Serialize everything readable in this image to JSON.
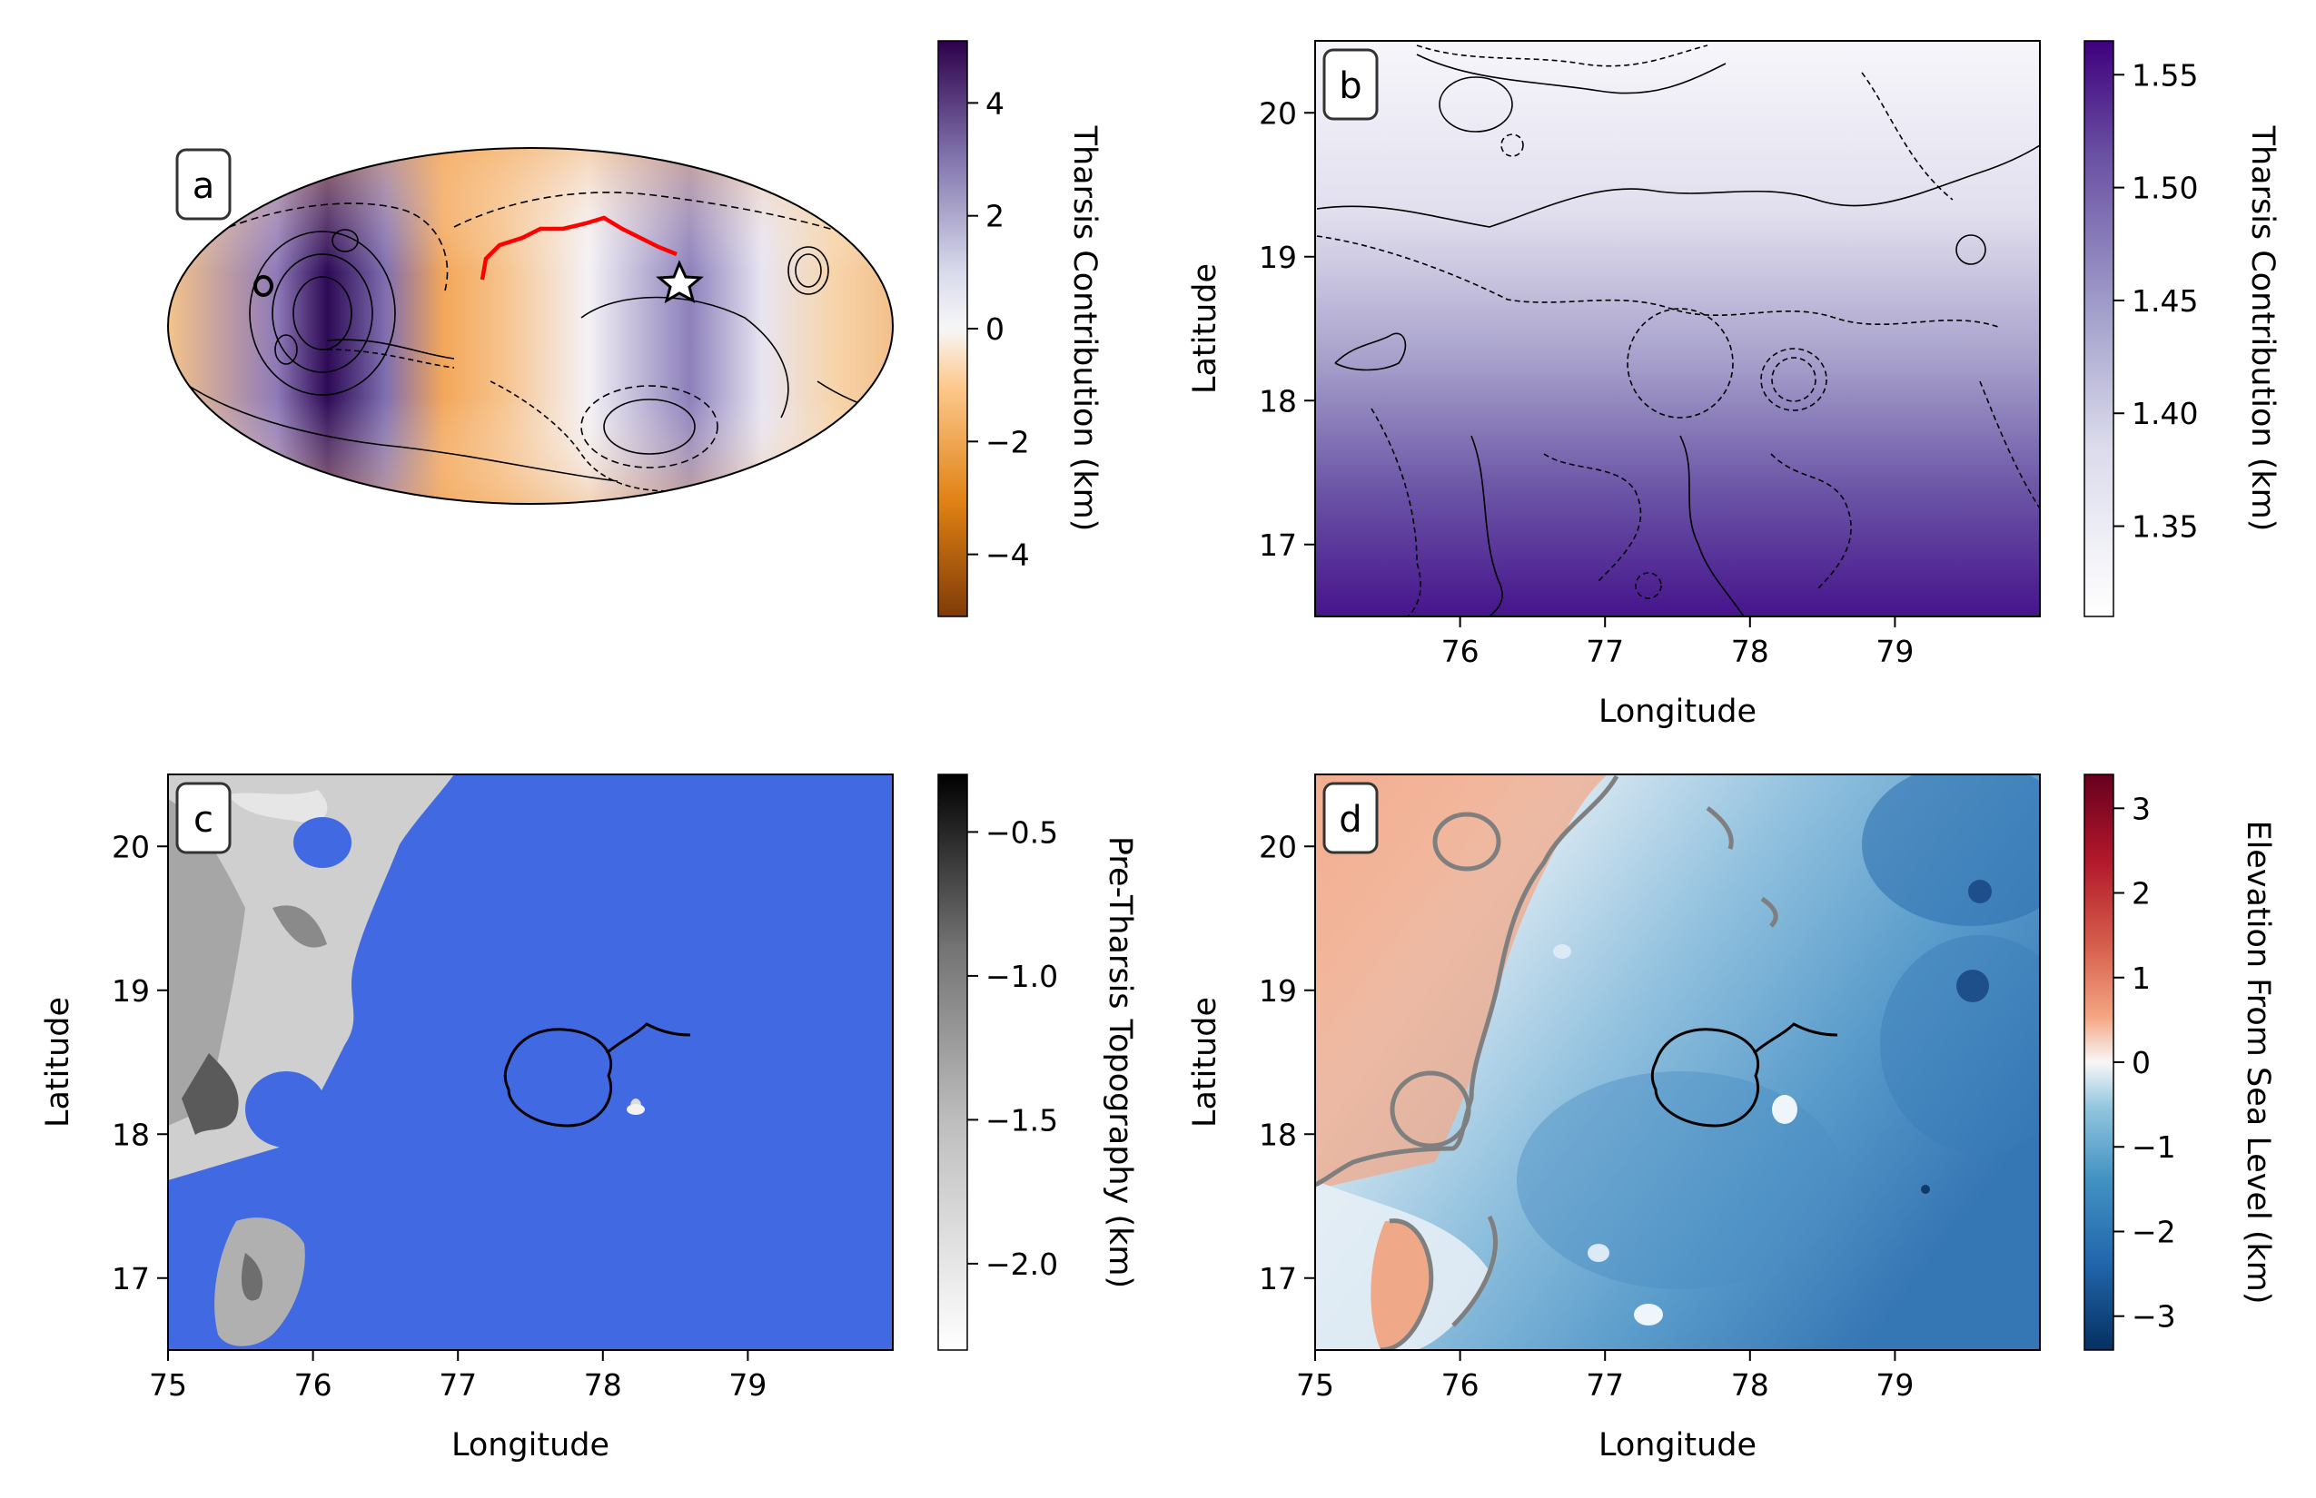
{
  "chart_data": [
    {
      "panel": "a",
      "type": "heatmap",
      "projection": "mollweide",
      "title": "",
      "colorbar": {
        "label": "Tharsis Contribution (km)",
        "ticks": [
          4,
          2,
          0,
          -2,
          -4
        ],
        "tick_labels": [
          "4",
          "2",
          "0",
          "−2",
          "−4"
        ],
        "range": [
          -5.1,
          5.1
        ],
        "colormap": "PuOr",
        "colors": [
          "#7f3b08",
          "#e08214",
          "#fee0b6",
          "#f7f7f7",
          "#d8daeb",
          "#8073ac",
          "#2d004b"
        ]
      },
      "annotations": [
        "red profile line",
        "star marker",
        "contour lines"
      ]
    },
    {
      "panel": "b",
      "type": "heatmap",
      "xlabel": "Longitude",
      "ylabel": "Latitude",
      "xlim": [
        75,
        80
      ],
      "ylim": [
        16.5,
        20.5
      ],
      "xticks": [
        76,
        77,
        78,
        79
      ],
      "yticks": [
        17,
        18,
        19,
        20
      ],
      "colorbar": {
        "label": "Tharsis Contribution (km)",
        "ticks": [
          1.55,
          1.5,
          1.45,
          1.4,
          1.35
        ],
        "tick_labels": [
          "1.55",
          "1.50",
          "1.45",
          "1.40",
          "1.35"
        ],
        "range": [
          1.31,
          1.565
        ],
        "colormap": "Purples",
        "colors": [
          "#ffffff",
          "#dadaeb",
          "#9e9ac8",
          "#6a51a3",
          "#3f007d"
        ]
      },
      "annotations": [
        "contour lines (solid and dashed)"
      ]
    },
    {
      "panel": "c",
      "type": "heatmap",
      "xlabel": "Longitude",
      "ylabel": "Latitude",
      "xlim": [
        75,
        80
      ],
      "ylim": [
        16.5,
        20.5
      ],
      "xticks": [
        75,
        76,
        77,
        78,
        79
      ],
      "yticks": [
        17,
        18,
        19,
        20
      ],
      "fill_color": "#4169e1",
      "colorbar": {
        "label": "Pre-Tharsis Topography (km)",
        "ticks": [
          -0.5,
          -1.0,
          -1.5,
          -2.0
        ],
        "tick_labels": [
          "−0.5",
          "−1.0",
          "−1.5",
          "−2.0"
        ],
        "range": [
          -2.3,
          -0.3
        ],
        "colormap": "Greys",
        "colors": [
          "#ffffff",
          "#bdbdbd",
          "#737373",
          "#000000"
        ]
      },
      "annotations": [
        "crater outline"
      ]
    },
    {
      "panel": "d",
      "type": "heatmap",
      "xlabel": "Longitude",
      "ylabel": "Latitude",
      "xlim": [
        75,
        80
      ],
      "ylim": [
        16.5,
        20.5
      ],
      "xticks": [
        75,
        76,
        77,
        78,
        79
      ],
      "yticks": [
        17,
        18,
        19,
        20
      ],
      "colorbar": {
        "label": "Elevation From Sea Level (km)",
        "ticks": [
          3,
          2,
          1,
          0,
          -1,
          -2,
          -3
        ],
        "tick_labels": [
          "3",
          "2",
          "1",
          "0",
          "−1",
          "−2",
          "−3"
        ],
        "range": [
          -3.4,
          3.4
        ],
        "colormap": "RdBu_r",
        "colors": [
          "#053061",
          "#2166ac",
          "#4393c3",
          "#92c5de",
          "#f7f7f7",
          "#f4a582",
          "#d6604d",
          "#b2182b",
          "#67001f"
        ]
      },
      "annotations": [
        "shoreline contour (gray)",
        "crater outline"
      ]
    }
  ]
}
